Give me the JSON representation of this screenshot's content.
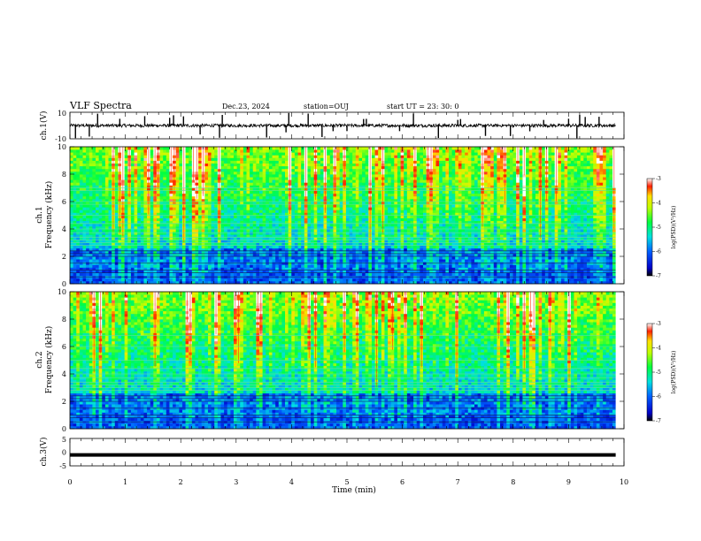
{
  "header": {
    "title": "VLF Spectra",
    "date": "Dec.23, 2024",
    "station": "station=OUJ",
    "start": "start  UT =   23: 30: 0"
  },
  "chart_data": [
    {
      "type": "line",
      "name": "ch1-waveform",
      "ylabel": "ch.1(V)",
      "ylim": [
        -10,
        10
      ],
      "yticks": [
        "10",
        "-10"
      ],
      "xlim": [
        0,
        10
      ],
      "baseline": 0,
      "spikes_x_min": [
        0.1,
        0.35,
        0.5,
        0.9,
        1.35,
        1.8,
        1.87,
        2.05,
        2.35,
        2.7,
        2.75,
        3.55,
        3.9,
        3.95,
        4.3,
        4.55,
        4.75,
        5.0,
        5.3,
        5.35,
        5.95,
        6.2,
        6.65,
        7.0,
        7.05,
        7.5,
        7.95,
        8.3,
        8.55,
        9.0,
        9.15,
        9.2,
        9.3,
        9.55
      ]
    },
    {
      "type": "heatmap",
      "name": "ch1-spectrogram",
      "ylabel": "ch.1\nFrequency (kHz)",
      "ylabel_lines": [
        "ch.1",
        "Frequency (kHz)"
      ],
      "ylim": [
        0,
        10
      ],
      "yticks": [
        "0",
        "2",
        "4",
        "6",
        "8",
        "10"
      ],
      "xlim": [
        0,
        9.85
      ],
      "colorbar": {
        "label": "log(PSD)(V²/Hz)",
        "range": [
          -7,
          -3
        ],
        "ticks": [
          "-3",
          "-4",
          "-5",
          "-6",
          "-7"
        ]
      },
      "bands_khz": [
        0.5,
        0.8,
        1.0,
        1.5,
        2.0,
        2.2,
        2.4,
        2.8,
        3.0,
        3.2,
        3.4,
        3.7,
        4.0,
        4.4,
        5.0,
        5.8,
        6.0,
        6.8,
        7.0
      ]
    },
    {
      "type": "heatmap",
      "name": "ch2-spectrogram",
      "ylabel": "ch.2\nFrequency (kHz)",
      "ylabel_lines": [
        "ch.2",
        "Frequency (kHz)"
      ],
      "ylim": [
        0,
        10
      ],
      "yticks": [
        "0",
        "2",
        "4",
        "6",
        "8",
        "10"
      ],
      "xlim": [
        0,
        9.85
      ],
      "colorbar": {
        "label": "log(PSD)(V²/Hz)",
        "range": [
          -7,
          -3
        ],
        "ticks": [
          "-3",
          "-4",
          "-5",
          "-6",
          "-7"
        ]
      },
      "bands_khz": [
        0.5,
        0.8,
        1.0,
        1.5,
        2.0,
        2.2,
        2.4,
        2.8,
        3.0,
        3.2,
        3.4,
        3.7,
        4.0,
        4.4,
        5.0,
        6.0,
        6.8
      ]
    },
    {
      "type": "line",
      "name": "ch3-waveform",
      "ylabel": "ch.3(V)",
      "ylim": [
        -5,
        5
      ],
      "yticks": [
        "5",
        "0",
        "-5"
      ],
      "xlim": [
        0,
        10
      ],
      "value": -1.0
    }
  ],
  "xaxis": {
    "label": "Time  (min)",
    "ticks": [
      "0",
      "1",
      "2",
      "3",
      "4",
      "5",
      "6",
      "7",
      "8",
      "9",
      "10"
    ]
  }
}
